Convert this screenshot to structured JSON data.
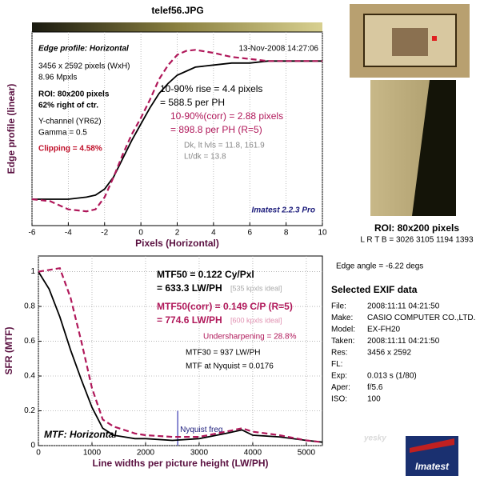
{
  "title": "telef56.JPG",
  "chart_data": [
    {
      "type": "line",
      "ylabel": "Edge profile (linear)",
      "xlabel": "Pixels (Horizontal)",
      "xlim": [
        -6,
        10
      ],
      "xticks": [
        -6,
        -4,
        -2,
        0,
        2,
        4,
        6,
        8,
        10
      ],
      "ylim": [
        0,
        1
      ],
      "grid": true,
      "x": [
        -6,
        -5,
        -4,
        -3,
        -2.5,
        -2,
        -1.5,
        -1,
        -0.5,
        0,
        0.5,
        1,
        1.5,
        2,
        2.5,
        3,
        4,
        5,
        6,
        7,
        8,
        9,
        10
      ],
      "series": [
        {
          "color": "#000000",
          "dashed": false,
          "values": [
            0.13,
            0.13,
            0.13,
            0.14,
            0.15,
            0.18,
            0.24,
            0.33,
            0.42,
            0.5,
            0.58,
            0.65,
            0.7,
            0.74,
            0.76,
            0.78,
            0.79,
            0.8,
            0.8,
            0.81,
            0.81,
            0.81,
            0.81
          ]
        },
        {
          "color": "#b0185a",
          "dashed": true,
          "values": [
            0.13,
            0.12,
            0.08,
            0.07,
            0.08,
            0.14,
            0.24,
            0.35,
            0.45,
            0.53,
            0.62,
            0.72,
            0.79,
            0.84,
            0.86,
            0.865,
            0.85,
            0.83,
            0.82,
            0.81,
            0.81,
            0.81,
            0.81
          ]
        }
      ],
      "annotations": {
        "heading": "Edge profile: Horizontal",
        "date": "13-Nov-2008 14:27:06",
        "size": "3456 x 2592 pixels (WxH)",
        "mpx": "8.96 Mpxls",
        "roi": "ROI: 80x200 pixels",
        "pos": "62% right of ctr.",
        "channel": "Y-channel  (YR62)",
        "gamma": "Gamma = 0.5",
        "clipping": "Clipping =  4.58%",
        "rise": "10-90% rise = 4.4 pixels",
        "rise_ph": "= 588.5 per PH",
        "rise_corr": "10-90%(corr) = 2.88 pixels",
        "rise_corr_ph": "= 898.8 per PH  (R=5)",
        "levels": "Dk, lt lvls = 11.8, 161.9",
        "ltdk": "Lt/dk = 13.8",
        "version": "Imatest 2.2.3 Pro"
      }
    },
    {
      "type": "line",
      "ylabel": "SFR (MTF)",
      "xlabel": "Line widths per picture height (LW/PH)",
      "xlim": [
        0,
        5300
      ],
      "xticks": [
        0,
        1000,
        2000,
        3000,
        4000,
        5000
      ],
      "ylim": [
        0,
        1.09
      ],
      "yticks": [
        0,
        0.2,
        0.4,
        0.6,
        0.8,
        1
      ],
      "grid": true,
      "nyquist_x": 2600,
      "x": [
        0,
        200,
        400,
        600,
        800,
        1000,
        1200,
        1400,
        1600,
        1800,
        2000,
        2500,
        3000,
        3500,
        3800,
        4000,
        4500,
        5000,
        5300
      ],
      "series": [
        {
          "color": "#000000",
          "dashed": false,
          "values": [
            1,
            0.9,
            0.74,
            0.55,
            0.38,
            0.22,
            0.1,
            0.06,
            0.05,
            0.04,
            0.04,
            0.03,
            0.04,
            0.07,
            0.09,
            0.06,
            0.05,
            0.03,
            0.02
          ]
        },
        {
          "color": "#b0185a",
          "dashed": true,
          "values": [
            1,
            1.01,
            1.02,
            0.85,
            0.6,
            0.33,
            0.15,
            0.11,
            0.09,
            0.07,
            0.06,
            0.05,
            0.05,
            0.08,
            0.1,
            0.08,
            0.06,
            0.03,
            0.02
          ]
        }
      ],
      "annotations": {
        "mtf50": "MTF50 = 0.122 Cy/Pxl",
        "mtf50_lw": "= 633.3 LW/PH",
        "ideal": "[535 kpxls ideal]",
        "mtf50c": "MTF50(corr) = 0.149 C/P  (R=5)",
        "mtf50c_lw": "= 774.6 LW/PH",
        "idealc": "[600 kpxls ideal]",
        "under": "Undersharpening = 28.8%",
        "mtf30": "MTF30 = 937 LW/PH",
        "nyq": "MTF at Nyquist = 0.0176",
        "heading": "MTF: Horizontal",
        "nyq_label": "Nyquist freq."
      }
    }
  ],
  "side": {
    "roi": "ROI: 80x200 pixels",
    "lrtb": "L R  T B = 3026 3105  1194 1393",
    "angle": "Edge angle = -6.22 degs",
    "exif_title": "Selected EXIF data",
    "exif": [
      [
        "File:",
        "2008:11:11 04:21:50"
      ],
      [
        "Make:",
        "CASIO COMPUTER CO.,LTD."
      ],
      [
        "Model:",
        "EX-FH20"
      ],
      [
        "Taken:",
        "2008:11:11 04:21:50"
      ],
      [
        "Res:",
        "3456 x 2592"
      ],
      [
        "FL:"
      ],
      [
        "Exp:",
        "0.013 s  (1/80)"
      ],
      [
        "Aper:",
        "f/5.6"
      ],
      [
        "ISO:",
        "100"
      ]
    ],
    "logo": "Imatest",
    "watermark": "yesky"
  }
}
